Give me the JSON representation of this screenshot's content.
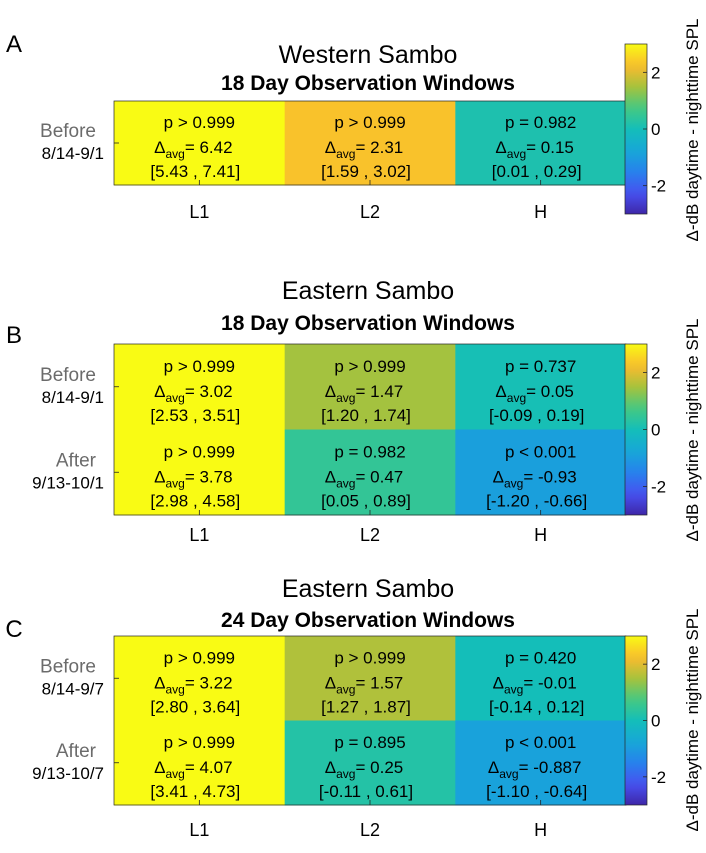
{
  "chart_data": {
    "type": "heatmap",
    "colorbar": {
      "label": "Δ-dB daytime - nighttime SPL",
      "range": [
        -3,
        3
      ],
      "ticks": [
        2,
        0,
        -2
      ],
      "tick_labels": [
        "2",
        "0",
        "-2"
      ],
      "colormap": "parula"
    },
    "x_categories": [
      "L1",
      "L2",
      "H"
    ],
    "panels": [
      {
        "letter": "A",
        "title": "Western Sambo",
        "subtitle": "18 Day Observation Windows",
        "rows": [
          {
            "label1": "Before",
            "label2": "8/14-9/1",
            "cells": [
              {
                "p": "p > 0.999",
                "delta_value": "6.42",
                "ci_low": "[5.43",
                "ci_high": "7.41]",
                "value": 6.42
              },
              {
                "p": "p > 0.999",
                "delta_value": "2.31",
                "ci_low": "[1.59",
                "ci_high": "3.02]",
                "value": 2.31
              },
              {
                "p": "p = 0.982",
                "delta_value": "0.15",
                "ci_low": "[0.01",
                "ci_high": "0.29]",
                "value": 0.15
              }
            ]
          }
        ]
      },
      {
        "letter": "B",
        "title": "Eastern Sambo",
        "subtitle": "18 Day Observation Windows",
        "rows": [
          {
            "label1": "Before",
            "label2": "8/14-9/1",
            "cells": [
              {
                "p": "p > 0.999",
                "delta_value": "3.02",
                "ci_low": "[2.53",
                "ci_high": "3.51]",
                "value": 3.02
              },
              {
                "p": "p > 0.999",
                "delta_value": "1.47",
                "ci_low": "[1.20",
                "ci_high": "1.74]",
                "value": 1.47
              },
              {
                "p": "p = 0.737",
                "delta_value": "0.05",
                "ci_low": "[-0.09",
                "ci_high": "0.19]",
                "value": 0.05
              }
            ]
          },
          {
            "label1": "After",
            "label2": "9/13-10/1",
            "cells": [
              {
                "p": "p > 0.999",
                "delta_value": "3.78",
                "ci_low": "[2.98",
                "ci_high": "4.58]",
                "value": 3.78
              },
              {
                "p": "p = 0.982",
                "delta_value": "0.47",
                "ci_low": "[0.05",
                "ci_high": "0.89]",
                "value": 0.47
              },
              {
                "p": "p < 0.001",
                "delta_value": "-0.93",
                "ci_low": "[-1.20",
                "ci_high": "-0.66]",
                "value": -0.93
              }
            ]
          }
        ]
      },
      {
        "letter": "C",
        "title": "Eastern Sambo",
        "subtitle": "24 Day Observation Windows",
        "rows": [
          {
            "label1": "Before",
            "label2": "8/14-9/7",
            "cells": [
              {
                "p": "p > 0.999",
                "delta_value": "3.22",
                "ci_low": "[2.80",
                "ci_high": "3.64]",
                "value": 3.22
              },
              {
                "p": "p > 0.999",
                "delta_value": "1.57",
                "ci_low": "[1.27",
                "ci_high": "1.87]",
                "value": 1.57
              },
              {
                "p": "p = 0.420",
                "delta_value": "-0.01",
                "ci_low": "[-0.14",
                "ci_high": "0.12]",
                "value": -0.01
              }
            ]
          },
          {
            "label1": "After",
            "label2": "9/13-10/7",
            "cells": [
              {
                "p": "p > 0.999",
                "delta_value": "4.07",
                "ci_low": "[3.41",
                "ci_high": "4.73]",
                "value": 4.07
              },
              {
                "p": "p = 0.895",
                "delta_value": "0.25",
                "ci_low": "[-0.11",
                "ci_high": "0.61]",
                "value": 0.25
              },
              {
                "p": "p < 0.001",
                "delta_value": "-0.887",
                "ci_low": "[-1.10",
                "ci_high": "-0.64]",
                "value": -0.887
              }
            ]
          }
        ]
      }
    ]
  }
}
